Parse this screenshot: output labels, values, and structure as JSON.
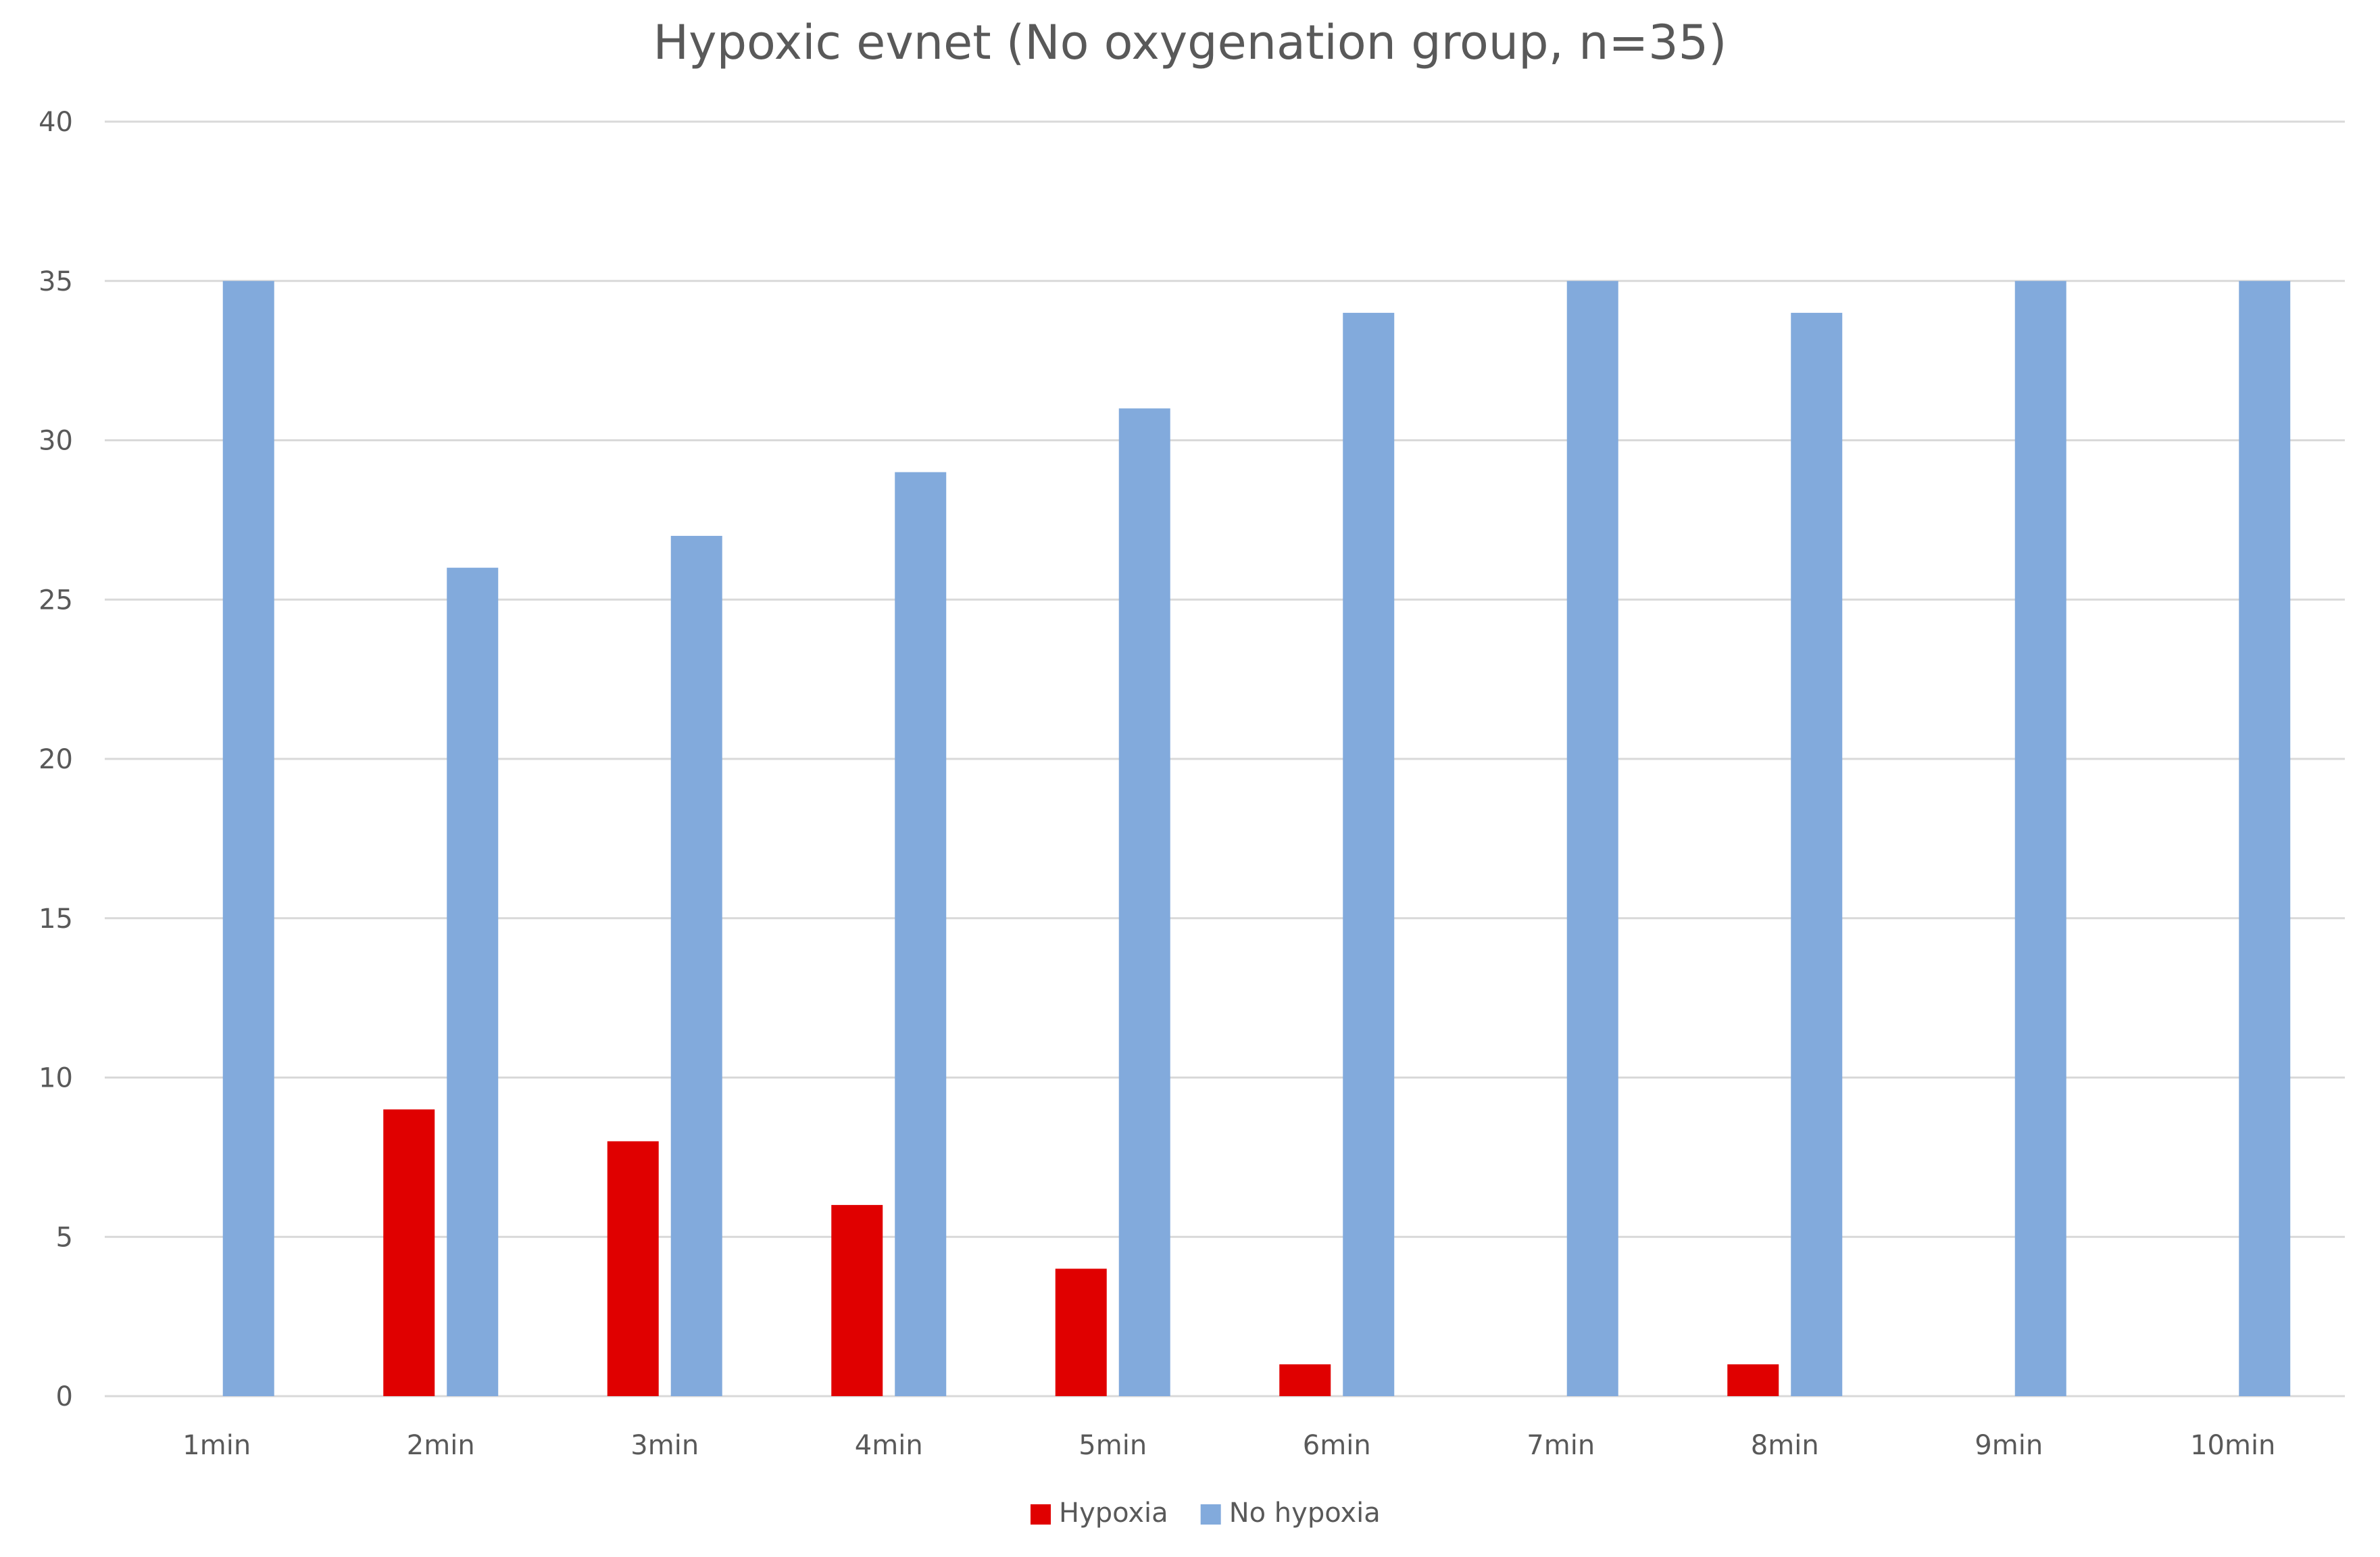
{
  "chart_data": {
    "type": "bar",
    "title": "Hypoxic evnet (No oxygenation group, n=35)",
    "categories": [
      "1min",
      "2min",
      "3min",
      "4min",
      "5min",
      "6min",
      "7min",
      "8min",
      "9min",
      "10min"
    ],
    "series": [
      {
        "name": "Hypoxia",
        "color": "#e00000",
        "values": [
          0,
          9,
          8,
          6,
          4,
          1,
          0,
          1,
          0,
          0
        ]
      },
      {
        "name": "No hypoxia",
        "color": "#82aadc",
        "values": [
          35,
          26,
          27,
          29,
          31,
          34,
          35,
          34,
          35,
          35
        ]
      }
    ],
    "ylim": [
      0,
      40
    ],
    "yticks": [
      0,
      5,
      10,
      15,
      20,
      25,
      30,
      35,
      40
    ],
    "xlabel": "",
    "ylabel": "",
    "grid": true,
    "legend_position": "bottom",
    "gridline_color": "#d9d9d9"
  }
}
